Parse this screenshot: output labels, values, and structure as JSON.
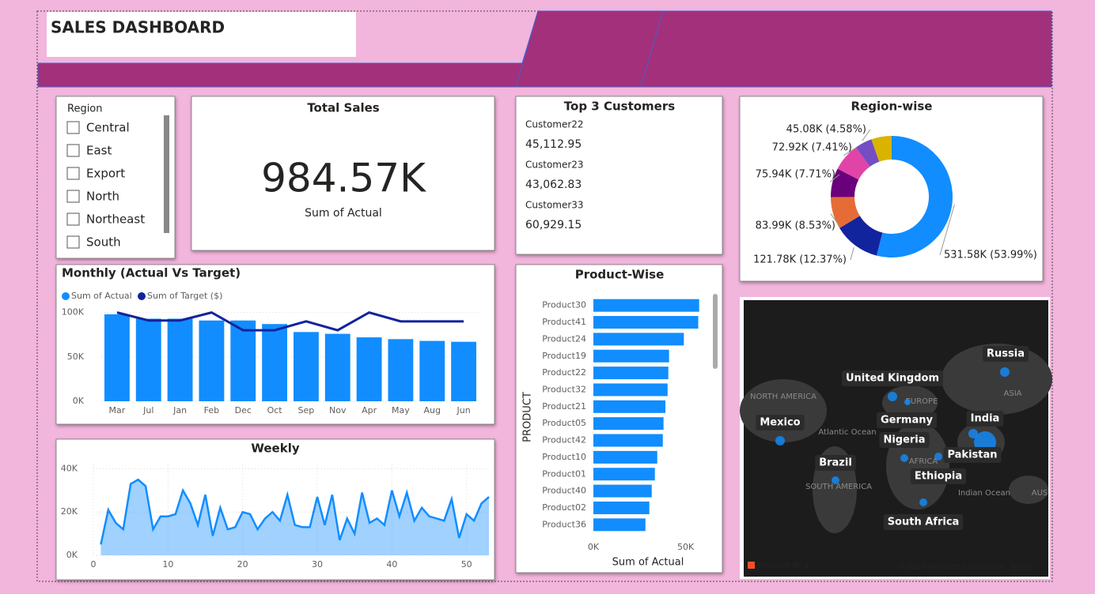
{
  "header": {
    "title": "SALES DASHBOARD"
  },
  "slicer": {
    "title": "Region",
    "options": [
      "Central",
      "East",
      "Export",
      "North",
      "Northeast",
      "South"
    ]
  },
  "card": {
    "title": "Total Sales",
    "value": "984.57K",
    "label": "Sum of Actual"
  },
  "top_customers": {
    "title": "Top 3 Customers",
    "items": [
      {
        "name": "Customer22",
        "value": "45,112.95"
      },
      {
        "name": "Customer23",
        "value": "43,062.83"
      },
      {
        "name": "Customer33",
        "value": "60,929.15"
      }
    ]
  },
  "chart_data": [
    {
      "type": "combo",
      "title": "Monthly (Actual Vs Target)",
      "categories": [
        "Mar",
        "Jul",
        "Jan",
        "Feb",
        "Dec",
        "Oct",
        "Sep",
        "Nov",
        "Apr",
        "May",
        "Aug",
        "Jun"
      ],
      "series": [
        {
          "name": "Sum of Actual",
          "type": "bar",
          "color": "#118dff",
          "values": [
            98,
            93,
            93,
            91,
            91,
            87,
            78,
            76,
            72,
            70,
            68,
            67
          ]
        },
        {
          "name": "Sum of Target ($)",
          "type": "line",
          "color": "#12239e",
          "values": [
            100,
            91,
            91,
            100,
            80,
            80,
            90,
            80,
            100,
            90,
            90,
            90
          ]
        }
      ],
      "ylim": [
        0,
        105
      ],
      "yticks": [
        {
          "value": 0,
          "label": "0K"
        },
        {
          "value": 50,
          "label": "50K"
        },
        {
          "value": 100,
          "label": "100K"
        }
      ],
      "grid": true
    },
    {
      "type": "area",
      "title": "Weekly",
      "x": [
        1,
        2,
        3,
        4,
        5,
        6,
        7,
        8,
        9,
        10,
        11,
        12,
        13,
        14,
        15,
        16,
        17,
        18,
        19,
        20,
        21,
        22,
        23,
        24,
        25,
        26,
        27,
        28,
        29,
        30,
        31,
        32,
        33,
        34,
        35,
        36,
        37,
        38,
        39,
        40,
        41,
        42,
        43,
        44,
        45,
        46,
        47,
        48,
        49,
        50,
        51,
        52,
        53
      ],
      "values": [
        5,
        21,
        15,
        12,
        33,
        35,
        32,
        12,
        18,
        18,
        19,
        30,
        24,
        14,
        28,
        9,
        22,
        12,
        13,
        20,
        19,
        12,
        17,
        20,
        16,
        28,
        14,
        13,
        13,
        27,
        14,
        28,
        7,
        17,
        10,
        29,
        15,
        17,
        14,
        30,
        18,
        29,
        16,
        22,
        18,
        17,
        16,
        26,
        8,
        19,
        16,
        24,
        27
      ],
      "color": "#118dff",
      "xlim": [
        0,
        53
      ],
      "xticks": [
        0,
        10,
        20,
        30,
        40,
        50
      ],
      "ylim": [
        0,
        42
      ],
      "yticks": [
        {
          "value": 0,
          "label": "0K"
        },
        {
          "value": 20,
          "label": "20K"
        },
        {
          "value": 40,
          "label": "40K"
        }
      ],
      "grid": true
    },
    {
      "type": "barh",
      "title": "Product-Wise",
      "x_label": "Sum of Actual",
      "y_label": "PRODUCT",
      "categories": [
        "Product30",
        "Product41",
        "Product24",
        "Product19",
        "Product22",
        "Product32",
        "Product21",
        "Product05",
        "Product42",
        "Product10",
        "Product01",
        "Product40",
        "Product02",
        "Product36"
      ],
      "values": [
        57.3,
        56.8,
        49,
        41,
        40.6,
        40.2,
        39,
        38,
        37.6,
        34.6,
        33.3,
        31.6,
        30.3,
        28.2
      ],
      "color": "#118dff",
      "xlim": [
        0,
        60
      ],
      "xticks": [
        {
          "value": 0,
          "label": "0K"
        },
        {
          "value": 50,
          "label": "50K"
        }
      ]
    },
    {
      "type": "donut",
      "title": "Region-wise",
      "values": [
        531.58,
        121.78,
        83.99,
        75.94,
        72.92,
        45.08,
        53.28
      ],
      "value_labels": [
        "531.58K (53.99%)",
        "121.78K (12.37%)",
        "83.99K (8.53%)",
        "75.94K (7.71%)",
        "72.92K (7.41%)",
        "45.08K (4.58%)",
        null
      ],
      "colors": [
        "#118dff",
        "#12239e",
        "#e66c37",
        "#6b007b",
        "#e044a7",
        "#744ec2",
        "#d9b300"
      ]
    }
  ],
  "map": {
    "labels": [
      "Russia",
      "United Kingdom",
      "Germany",
      "India",
      "Mexico",
      "Nigeria",
      "Pakistan",
      "Brazil",
      "Ethiopia",
      "South Africa"
    ],
    "regions": [
      "NORTH AMERICA",
      "EUROPE",
      "ASIA",
      "Atlantic Ocean",
      "AFRICA",
      "SOUTH AMERICA",
      "Indian Ocean",
      "AUS"
    ],
    "brand": "Microsoft Bing",
    "copyright": "© 2025 Microsoft Corporation",
    "terms": "Terms"
  }
}
